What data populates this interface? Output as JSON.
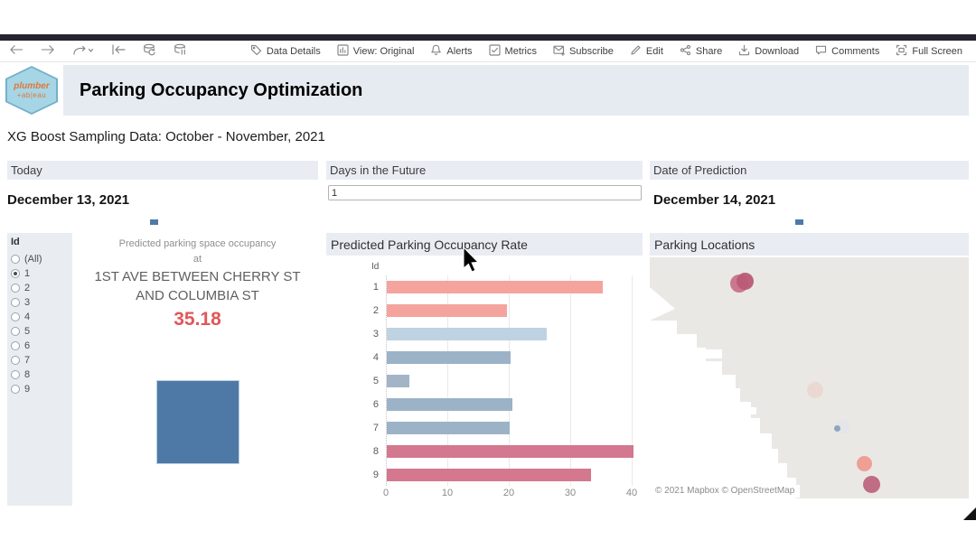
{
  "browser_toolbar": {
    "left_controls": [
      {
        "icon": "back-icon"
      },
      {
        "icon": "forward-icon"
      },
      {
        "icon": "redo-icon"
      },
      {
        "icon": "revert-icon"
      },
      {
        "icon": "refresh-data-icon"
      },
      {
        "icon": "pause-updates-icon"
      }
    ],
    "menu_items": [
      {
        "label": "Data Details",
        "icon": "tag-icon"
      },
      {
        "label": "View: Original",
        "icon": "view-icon"
      },
      {
        "label": "Alerts",
        "icon": "bell-icon"
      },
      {
        "label": "Metrics",
        "icon": "metrics-icon"
      },
      {
        "label": "Subscribe",
        "icon": "envelope-icon"
      },
      {
        "label": "Edit",
        "icon": "pencil-icon"
      },
      {
        "label": "Share",
        "icon": "share-icon"
      },
      {
        "label": "Download",
        "icon": "download-icon"
      },
      {
        "label": "Comments",
        "icon": "comment-icon"
      },
      {
        "label": "Full Screen",
        "icon": "fullscreen-icon"
      }
    ]
  },
  "header": {
    "title": "Parking Occupancy Optimization",
    "logo_line1": "plumber",
    "logo_line2": "+ab|eau"
  },
  "subtitle": "XG Boost Sampling Data: October - November, 2021",
  "filters": {
    "today": {
      "label": "Today",
      "value": "December 13, 2021",
      "mark_color": "#4e79a7"
    },
    "days_future": {
      "label": "Days in the Future",
      "value": "1"
    },
    "prediction": {
      "label": "Date of Prediction",
      "value": "December 14, 2021",
      "mark_color": "#4e79a7"
    }
  },
  "id_filter": {
    "label": "Id",
    "options": [
      "(All)",
      "1",
      "2",
      "3",
      "4",
      "5",
      "6",
      "7",
      "8",
      "9"
    ],
    "selected": "1"
  },
  "prediction_card": {
    "line1": "Predicted parking space occupancy",
    "line2": "at",
    "location": "1ST AVE BETWEEN CHERRY ST AND COLUMBIA ST",
    "value": "35.18",
    "value_color": "#e15759",
    "mark_color": "#4e79a7"
  },
  "chart_data": {
    "type": "bar",
    "orientation": "horizontal",
    "title": "Predicted Parking Occupancy Rate",
    "category_axis_label": "Id",
    "categories": [
      "1",
      "2",
      "3",
      "4",
      "5",
      "6",
      "7",
      "8",
      "9"
    ],
    "values": [
      35.18,
      19.6,
      26.0,
      20.1,
      3.7,
      20.5,
      20.0,
      40.2,
      33.3
    ],
    "bar_colors": [
      "#f4a49d",
      "#f4a49d",
      "#bed2e2",
      "#9cb2c7",
      "#a3b4c7",
      "#9cb2c7",
      "#9cb2c7",
      "#d3788e",
      "#d3788e"
    ],
    "xlim": [
      0,
      40
    ],
    "xticks": [
      0,
      10,
      20,
      30,
      40
    ],
    "grid": "vertical"
  },
  "map": {
    "title": "Parking Locations",
    "attribution": "© 2021 Mapbox  © OpenStreetMap",
    "land_color": "#eae8e4",
    "points": [
      {
        "x": 99,
        "y": 29,
        "r": 10,
        "color": "#c9728a"
      },
      {
        "x": 105,
        "y": 26,
        "r": 9.5,
        "color": "#b85a76"
      },
      {
        "x": 183,
        "y": 147,
        "r": 9,
        "color": "#ead8d1"
      },
      {
        "x": 213,
        "y": 187,
        "r": 8,
        "color": "#e4e5e8"
      },
      {
        "x": 207,
        "y": 189,
        "r": 3.5,
        "color": "#8aa2b9"
      },
      {
        "x": 237,
        "y": 228,
        "r": 8.5,
        "color": "#ed9c8e"
      },
      {
        "x": 245,
        "y": 251,
        "r": 9.5,
        "color": "#bf6580"
      }
    ]
  }
}
